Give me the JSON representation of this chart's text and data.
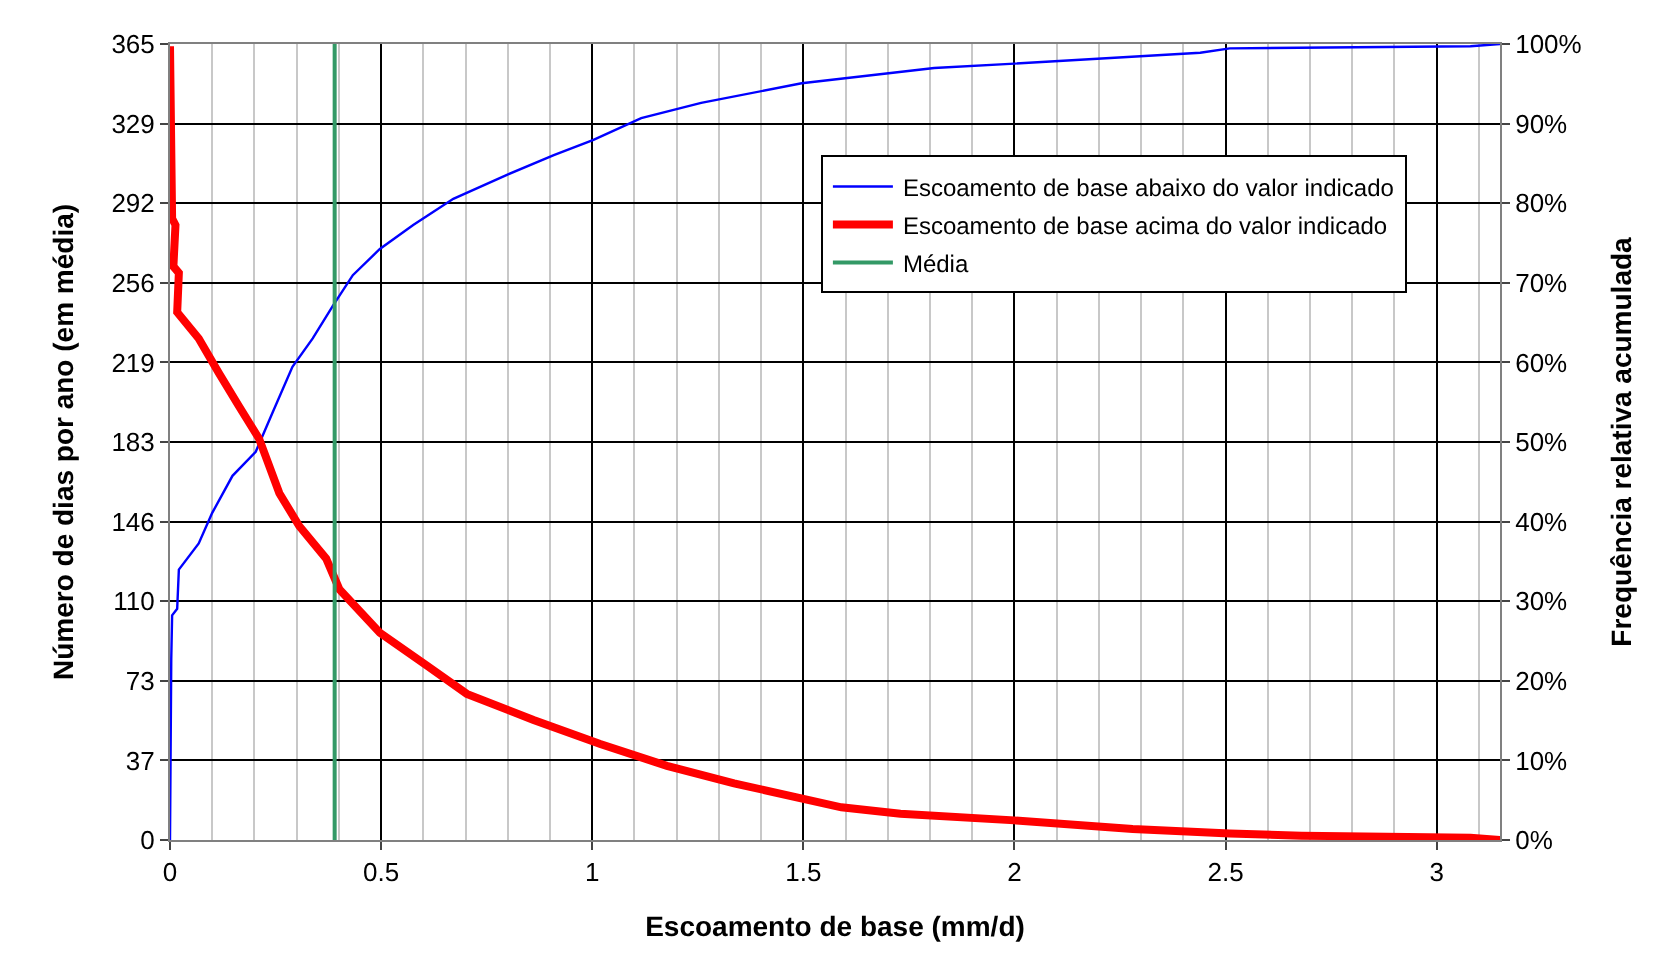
{
  "chart_data": {
    "type": "line",
    "xlabel": "Escoamento de base (mm/d)",
    "ylabel": "Número de dias por ano (em média)",
    "y2label": "Frequência relativa acumulada",
    "xlim": [
      0,
      3.15
    ],
    "xticks": [
      0,
      {
        "value": 0.1,
        "label": null
      },
      {
        "value": 0.2,
        "label": null
      },
      {
        "value": 0.3,
        "label": null
      },
      {
        "value": 0.4,
        "label": null
      },
      0.5,
      {
        "value": 0.6,
        "label": null
      },
      {
        "value": 0.7,
        "label": null
      },
      {
        "value": 0.8,
        "label": null
      },
      {
        "value": 0.9,
        "label": null
      },
      1,
      {
        "value": 1.1,
        "label": null
      },
      {
        "value": 1.2,
        "label": null
      },
      {
        "value": 1.3,
        "label": null
      },
      {
        "value": 1.4,
        "label": null
      },
      1.5,
      {
        "value": 1.6,
        "label": null
      },
      {
        "value": 1.7,
        "label": null
      },
      {
        "value": 1.8,
        "label": null
      },
      {
        "value": 1.9,
        "label": null
      },
      2,
      {
        "value": 2.1,
        "label": null
      },
      {
        "value": 2.2,
        "label": null
      },
      {
        "value": 2.3,
        "label": null
      },
      {
        "value": 2.4,
        "label": null
      },
      2.5,
      {
        "value": 2.6,
        "label": null
      },
      {
        "value": 2.7,
        "label": null
      },
      {
        "value": 2.8,
        "label": null
      },
      {
        "value": 2.9,
        "label": null
      },
      3,
      {
        "value": 3.1,
        "label": null
      }
    ],
    "ylim": [
      0,
      365
    ],
    "yticks": [
      0,
      {
        "value": 36.5,
        "label": "37"
      },
      73,
      {
        "value": 109.5,
        "label": "110"
      },
      146,
      {
        "value": 182.5,
        "label": "183"
      },
      {
        "value": 219,
        "label": "219"
      },
      {
        "value": 255.5,
        "label": "256"
      },
      292,
      {
        "value": 328.5,
        "label": "329"
      },
      365
    ],
    "y2lim": [
      0,
      100
    ],
    "y2ticks": [
      {
        "value": 0,
        "label": "0%"
      },
      {
        "value": 10,
        "label": "10%"
      },
      {
        "value": 20,
        "label": "20%"
      },
      {
        "value": 30,
        "label": "30%"
      },
      {
        "value": 40,
        "label": "40%"
      },
      {
        "value": 50,
        "label": "50%"
      },
      {
        "value": 60,
        "label": "60%"
      },
      {
        "value": 70,
        "label": "70%"
      },
      {
        "value": 80,
        "label": "80%"
      },
      {
        "value": 90,
        "label": "90%"
      },
      {
        "value": 100,
        "label": "100%"
      }
    ],
    "grid": true,
    "legend": "top right",
    "marker": "none",
    "series": [
      {
        "name": "Escoamento de base abaixo do valor indicado",
        "color": "#0000ff",
        "x": [
          0,
          0.003,
          0.005,
          0.017,
          0.021,
          0.068,
          0.1,
          0.148,
          0.203,
          0.243,
          0.29,
          0.338,
          0.386,
          0.433,
          0.497,
          0.576,
          0.671,
          0.798,
          0.909,
          1.003,
          1.116,
          1.258,
          1.496,
          1.81,
          2.0,
          2.44,
          2.51,
          3.08,
          3.15
        ],
        "values": [
          0,
          83,
          103,
          106,
          124,
          136,
          150,
          167,
          178,
          196,
          217,
          230,
          245,
          259,
          271,
          282,
          294,
          305,
          314,
          321,
          331,
          338,
          347,
          354,
          356,
          361,
          363,
          364,
          365
        ]
      },
      {
        "name": "Escoamento de base acima do valor indicado",
        "color": "#ff0000",
        "x": [
          0,
          0.005,
          0.013,
          0.008,
          0.021,
          0.017,
          0.068,
          0.116,
          0.163,
          0.211,
          0.259,
          0.306,
          0.37,
          0.401,
          0.497,
          0.608,
          0.703,
          0.861,
          1.019,
          1.177,
          1.336,
          1.59,
          1.73,
          2.0,
          2.28,
          2.51,
          2.68,
          3.08,
          3.15
        ],
        "values": [
          364,
          285,
          282,
          263,
          260,
          242,
          230,
          214,
          199,
          184,
          159,
          144,
          129,
          115,
          95,
          80,
          67,
          55,
          44,
          34,
          26,
          15,
          12,
          9,
          5,
          3,
          2,
          1,
          0
        ]
      },
      {
        "name": "Média",
        "color": "#339966",
        "axis": "y2",
        "x": [
          0.39,
          0.39
        ],
        "values": [
          0,
          100
        ]
      }
    ]
  }
}
